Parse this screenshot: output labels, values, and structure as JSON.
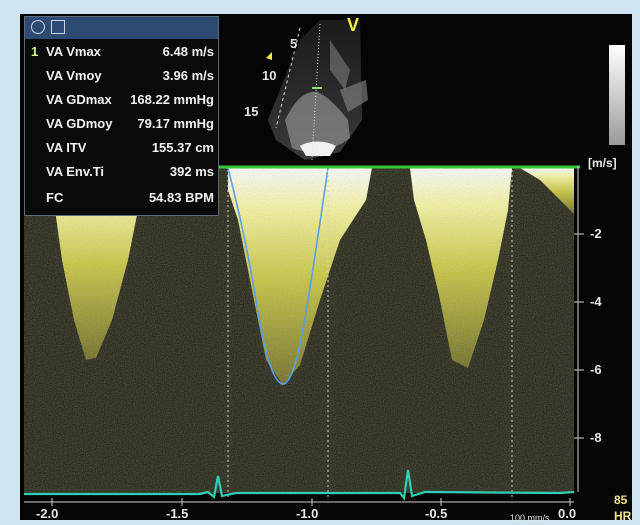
{
  "measurements": {
    "selected_index": "1",
    "items": [
      {
        "label": "VA Vmax",
        "value": "6.48 m/s"
      },
      {
        "label": "VA Vmoy",
        "value": "3.96 m/s"
      },
      {
        "label": "VA GDmax",
        "value": "168.22 mmHg"
      },
      {
        "label": "VA  GDmoy",
        "value": "79.17 mmHg"
      },
      {
        "label": "VA ITV",
        "value": "155.37 cm"
      },
      {
        "label": "VA Env.Ti",
        "value": "392 ms"
      },
      {
        "label": "FC",
        "value": "54.83 BPM"
      }
    ]
  },
  "image": {
    "view_marker": "V",
    "depth_labels": [
      "5",
      "10",
      "15"
    ]
  },
  "doppler": {
    "unit": "[m/s]",
    "y_ticks": [
      "-2",
      "-4",
      "-6",
      "-8"
    ],
    "x_ticks": [
      "-2.0",
      "-1.5",
      "-1.0",
      "-0.5",
      "0.0"
    ],
    "sweep_speed": "100 mm/s",
    "heart_rate": "85",
    "heart_rate_label": "HR"
  },
  "colors": {
    "spectrum": "#e6e640",
    "envelope_trace": "#5aa0e8",
    "ecg_trace": "#2fd0b5",
    "baseline": "#38c838"
  }
}
